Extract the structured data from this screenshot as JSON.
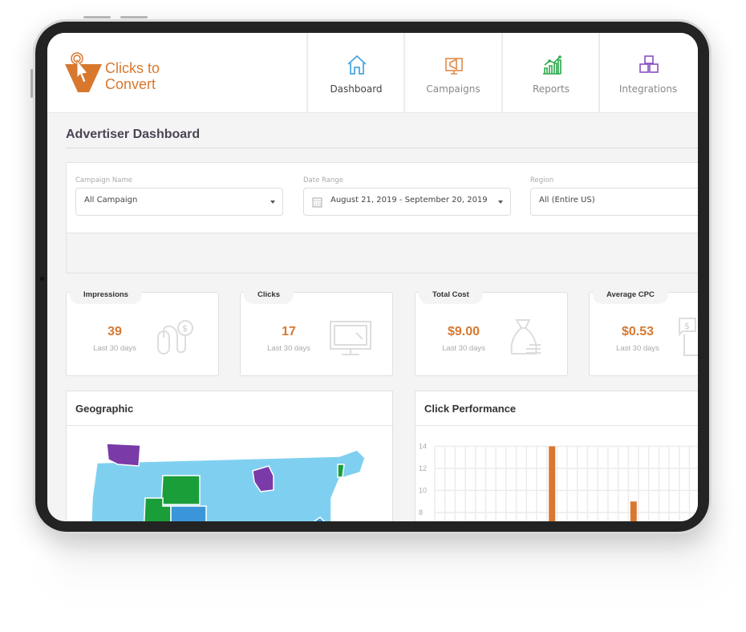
{
  "app": {
    "brand_line1": "Clicks to",
    "brand_line2": "Convert",
    "brand_color": "#d8782f"
  },
  "nav": {
    "tabs": [
      {
        "label": "Dashboard",
        "icon": "home-icon",
        "color": "#4aa8e0",
        "active": true
      },
      {
        "label": "Campaigns",
        "icon": "megaphone-icon",
        "color": "#e08a4a",
        "active": false
      },
      {
        "label": "Reports",
        "icon": "bar-chart-icon",
        "color": "#2aa84a",
        "active": false
      },
      {
        "label": "Integrations",
        "icon": "cubes-icon",
        "color": "#8a4ec0",
        "active": false
      }
    ]
  },
  "page": {
    "title": "Advertiser Dashboard"
  },
  "filters": {
    "campaign": {
      "label": "Campaign Name",
      "value": "All Campaign"
    },
    "date": {
      "label": "Date Range",
      "value": "August 21, 2019 - September 20, 2019",
      "icon": "calendar-icon"
    },
    "region": {
      "label": "Region",
      "value": "All (Entire US)"
    }
  },
  "stats": [
    {
      "title": "Impressions",
      "value": "39",
      "sub": "Last 30 days",
      "icon": "mouse-dollar-icon"
    },
    {
      "title": "Clicks",
      "value": "17",
      "sub": "Last 30 days",
      "icon": "monitor-click-icon"
    },
    {
      "title": "Total Cost",
      "value": "$9.00",
      "sub": "Last 30 days",
      "icon": "money-bag-icon"
    },
    {
      "title": "Average CPC",
      "value": "$0.53",
      "sub": "Last 30 days",
      "icon": "dollar-chat-icon"
    }
  ],
  "geographic": {
    "title": "Geographic",
    "colors": {
      "base": "#7fd0f0",
      "green": "#1a9e3a",
      "purple": "#7a3aa8",
      "blue": "#3a96d8"
    }
  },
  "click_performance": {
    "title": "Click Performance"
  },
  "chart_data": {
    "type": "bar",
    "yticks": [
      8,
      10,
      12,
      14
    ],
    "ylim": [
      0,
      15
    ],
    "grid": true,
    "bar_color": "#d8782f",
    "values": [
      0,
      0,
      0,
      0,
      0,
      0,
      0,
      0,
      0,
      0,
      0,
      14,
      0,
      0,
      0,
      0,
      0,
      0,
      0,
      9,
      0,
      0,
      0,
      0,
      0,
      0
    ]
  }
}
